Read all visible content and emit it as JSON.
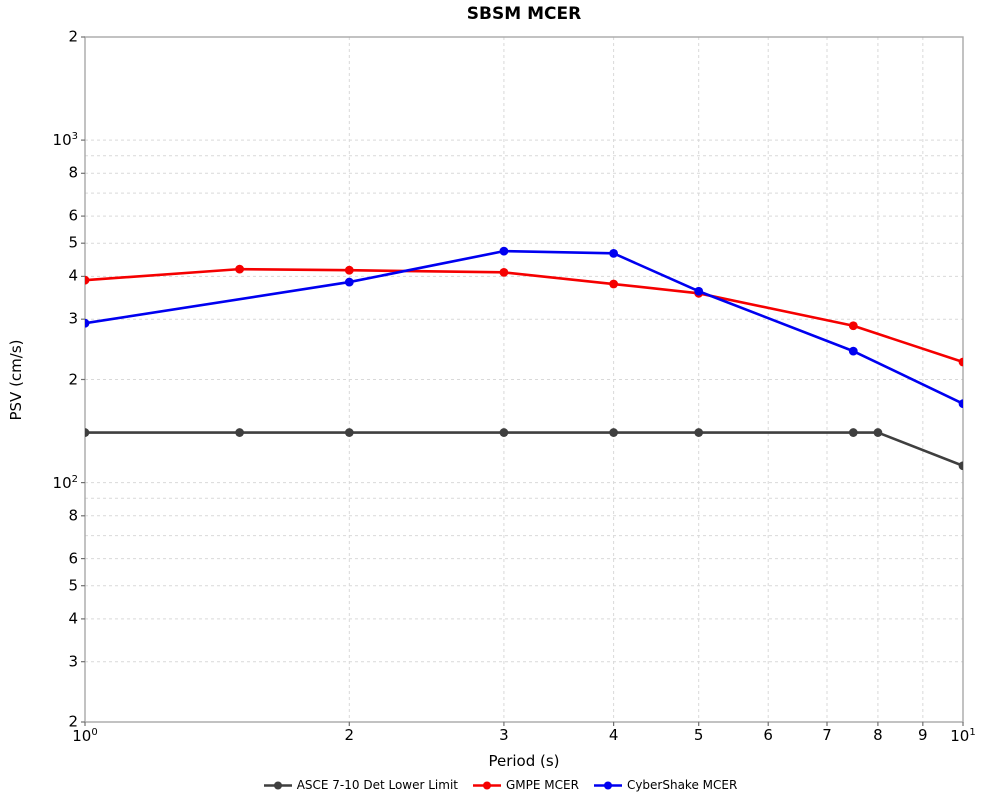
{
  "chart_data": {
    "type": "line",
    "title": "SBSM MCER",
    "xlabel": "Period (s)",
    "ylabel": "PSV (cm/s)",
    "xscale": "log",
    "yscale": "log",
    "xlim": [
      1,
      10
    ],
    "ylim": [
      20,
      2000
    ],
    "grid": "dashed",
    "grid_color": "#d9d9d9",
    "frame_color": "#a8a8a8",
    "legend_position": "bottom-center",
    "x_ticks": [
      {
        "value": 1,
        "label": "10^0"
      },
      {
        "value": 2,
        "label": "2"
      },
      {
        "value": 3,
        "label": "3"
      },
      {
        "value": 4,
        "label": "4"
      },
      {
        "value": 5,
        "label": "5"
      },
      {
        "value": 6,
        "label": "6"
      },
      {
        "value": 7,
        "label": "7"
      },
      {
        "value": 8,
        "label": "8"
      },
      {
        "value": 9,
        "label": "9"
      },
      {
        "value": 10,
        "label": "10^1"
      }
    ],
    "y_ticks": [
      {
        "value": 2000,
        "label": "2"
      },
      {
        "value": 1000,
        "label": "10^3"
      },
      {
        "value": 800,
        "label": "8"
      },
      {
        "value": 600,
        "label": "6"
      },
      {
        "value": 500,
        "label": "5"
      },
      {
        "value": 400,
        "label": "4"
      },
      {
        "value": 300,
        "label": "3"
      },
      {
        "value": 200,
        "label": "2"
      },
      {
        "value": 100,
        "label": "10^2"
      },
      {
        "value": 80,
        "label": "8"
      },
      {
        "value": 60,
        "label": "6"
      },
      {
        "value": 50,
        "label": "5"
      },
      {
        "value": 40,
        "label": "4"
      },
      {
        "value": 30,
        "label": "3"
      },
      {
        "value": 20,
        "label": "2"
      }
    ],
    "x_gridlines": [
      2,
      3,
      4,
      5,
      6,
      7,
      8,
      9
    ],
    "y_gridlines": [
      2000,
      1000,
      900,
      800,
      700,
      600,
      500,
      400,
      300,
      200,
      100,
      90,
      80,
      70,
      60,
      50,
      40,
      30,
      20
    ],
    "series": [
      {
        "name": "ASCE 7-10 Det Lower Limit",
        "color": "#3f3f3f",
        "marker": "circle",
        "x": [
          1,
          1.5,
          2,
          3,
          4,
          5,
          7.5,
          8,
          10
        ],
        "y": [
          140,
          140,
          140,
          140,
          140,
          140,
          140,
          140,
          112
        ]
      },
      {
        "name": "GMPE MCER",
        "color": "#f50000",
        "marker": "circle",
        "x": [
          1,
          1.5,
          2,
          3,
          4,
          5,
          7.5,
          10
        ],
        "y": [
          390,
          420,
          417,
          411,
          380,
          357,
          287,
          225
        ]
      },
      {
        "name": "CyberShake MCER",
        "color": "#0000f0",
        "marker": "circle",
        "x": [
          1,
          2,
          3,
          4,
          5,
          7.5,
          10
        ],
        "y": [
          292,
          385,
          474,
          467,
          362,
          242,
          170
        ]
      }
    ]
  }
}
